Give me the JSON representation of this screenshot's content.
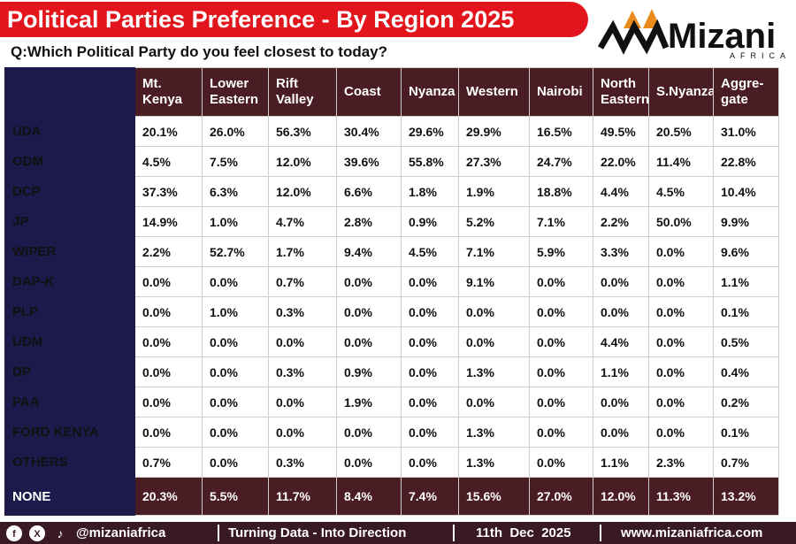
{
  "header": {
    "title": "Political Parties Preference - By Region 2025",
    "question": "Q:Which Political Party do you feel closest to today?"
  },
  "logo": {
    "name": "Mizani",
    "tagline": "AFRICA"
  },
  "table": {
    "columns": [
      "Mt. Kenya",
      "Lower Eastern",
      "Rift Valley",
      "Coast",
      "Nyanza",
      "Western",
      "Nairobi",
      "North Eastern",
      "S.Nyanza",
      "Aggre-gate"
    ],
    "rows": [
      {
        "party": "UDA",
        "values": [
          "20.1%",
          "26.0%",
          "56.3%",
          "30.4%",
          "29.6%",
          "29.9%",
          "16.5%",
          "49.5%",
          "20.5%",
          "31.0%"
        ]
      },
      {
        "party": "ODM",
        "values": [
          "4.5%",
          "7.5%",
          "12.0%",
          "39.6%",
          "55.8%",
          "27.3%",
          "24.7%",
          "22.0%",
          "11.4%",
          "22.8%"
        ]
      },
      {
        "party": "DCP",
        "values": [
          "37.3%",
          "6.3%",
          "12.0%",
          "6.6%",
          "1.8%",
          "1.9%",
          "18.8%",
          "4.4%",
          "4.5%",
          "10.4%"
        ]
      },
      {
        "party": "JP",
        "values": [
          "14.9%",
          "1.0%",
          "4.7%",
          "2.8%",
          "0.9%",
          "5.2%",
          "7.1%",
          "2.2%",
          "50.0%",
          "9.9%"
        ]
      },
      {
        "party": "WIPER",
        "values": [
          "2.2%",
          "52.7%",
          "1.7%",
          "9.4%",
          "4.5%",
          "7.1%",
          "5.9%",
          "3.3%",
          "0.0%",
          "9.6%"
        ]
      },
      {
        "party": "DAP-K",
        "values": [
          "0.0%",
          "0.0%",
          "0.7%",
          "0.0%",
          "0.0%",
          "9.1%",
          "0.0%",
          "0.0%",
          "0.0%",
          "1.1%"
        ]
      },
      {
        "party": "PLP",
        "values": [
          "0.0%",
          "1.0%",
          "0.3%",
          "0.0%",
          "0.0%",
          "0.0%",
          "0.0%",
          "0.0%",
          "0.0%",
          "0.1%"
        ]
      },
      {
        "party": "UDM",
        "values": [
          "0.0%",
          "0.0%",
          "0.0%",
          "0.0%",
          "0.0%",
          "0.0%",
          "0.0%",
          "4.4%",
          "0.0%",
          "0.5%"
        ]
      },
      {
        "party": "DP",
        "values": [
          "0.0%",
          "0.0%",
          "0.3%",
          "0.9%",
          "0.0%",
          "1.3%",
          "0.0%",
          "1.1%",
          "0.0%",
          "0.4%"
        ]
      },
      {
        "party": "PAA",
        "values": [
          "0.0%",
          "0.0%",
          "0.0%",
          "1.9%",
          "0.0%",
          "0.0%",
          "0.0%",
          "0.0%",
          "0.0%",
          "0.2%"
        ]
      },
      {
        "party": "FORD KENYA",
        "values": [
          "0.0%",
          "0.0%",
          "0.0%",
          "0.0%",
          "0.0%",
          "1.3%",
          "0.0%",
          "0.0%",
          "0.0%",
          "0.1%"
        ]
      },
      {
        "party": "OTHERS",
        "values": [
          "0.7%",
          "0.0%",
          "0.3%",
          "0.0%",
          "0.0%",
          "1.3%",
          "0.0%",
          "1.1%",
          "2.3%",
          "0.7%"
        ]
      },
      {
        "party": "NONE",
        "values": [
          "20.3%",
          "5.5%",
          "11.7%",
          "8.4%",
          "7.4%",
          "15.6%",
          "27.0%",
          "12.0%",
          "11.3%",
          "13.2%"
        ]
      }
    ]
  },
  "footer": {
    "handle": "@mizaniafrica",
    "slogan": "Turning Data - Into Direction",
    "date": "11th  Dec  2025",
    "website": "www.mizaniafrica.com"
  }
}
